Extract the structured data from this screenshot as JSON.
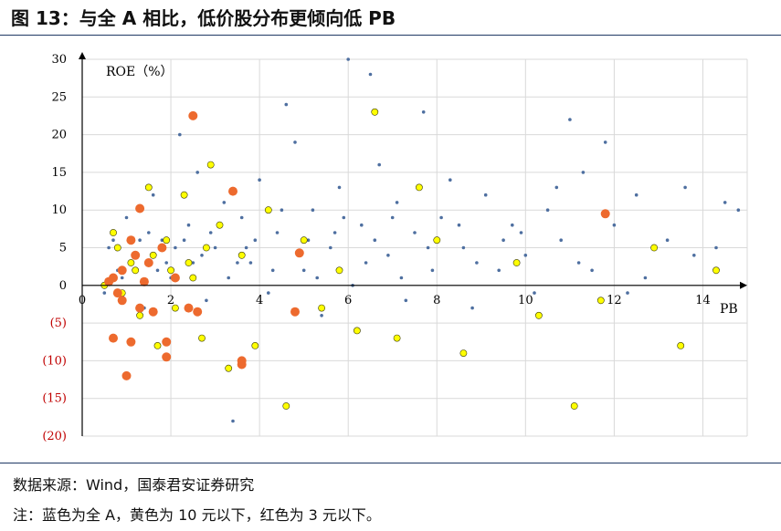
{
  "title": "图 13：与全 A 相比，低价股分布更倾向低 PB",
  "source": "数据来源：Wind，国泰君安证券研究",
  "legend_note": "注：蓝色为全 A，黄色为 10 元以下，红色为 3 元以下。",
  "colors": {
    "blue": "#4e6fa0",
    "yellow": "#ffff00",
    "red": "#ed6a2e",
    "grid": "#d9d9d9",
    "neg_tick": "#c00000"
  },
  "chart_data": {
    "type": "scatter",
    "xlabel": "PB",
    "ylabel": "ROE（%）",
    "xlim": [
      0,
      15
    ],
    "ylim": [
      -20,
      30
    ],
    "x_ticks": [
      {
        "v": 0,
        "label": "0"
      },
      {
        "v": 2,
        "label": "2"
      },
      {
        "v": 4,
        "label": "4"
      },
      {
        "v": 6,
        "label": "6"
      },
      {
        "v": 8,
        "label": "8"
      },
      {
        "v": 10,
        "label": "10"
      },
      {
        "v": 12,
        "label": "12"
      },
      {
        "v": 14,
        "label": "14"
      }
    ],
    "y_ticks": [
      {
        "v": 30,
        "label": "30"
      },
      {
        "v": 25,
        "label": "25"
      },
      {
        "v": 20,
        "label": "20"
      },
      {
        "v": 15,
        "label": "15"
      },
      {
        "v": 10,
        "label": "10"
      },
      {
        "v": 5,
        "label": "5"
      },
      {
        "v": 0,
        "label": "0"
      },
      {
        "v": -5,
        "label": "(5)"
      },
      {
        "v": -10,
        "label": "(10)"
      },
      {
        "v": -15,
        "label": "(15)"
      },
      {
        "v": -20,
        "label": "(20)"
      }
    ],
    "series": [
      {
        "key": "blue",
        "points": [
          [
            14.8,
            10
          ],
          [
            14.5,
            11
          ],
          [
            14.3,
            5
          ],
          [
            13.8,
            4
          ],
          [
            13.6,
            13
          ],
          [
            13.2,
            6
          ],
          [
            12.7,
            1
          ],
          [
            12.5,
            12
          ],
          [
            12.3,
            -1
          ],
          [
            12.0,
            8
          ],
          [
            11.8,
            19
          ],
          [
            11.5,
            2
          ],
          [
            11.3,
            15
          ],
          [
            11.0,
            22
          ],
          [
            10.8,
            6
          ],
          [
            10.5,
            10
          ],
          [
            10.2,
            -1
          ],
          [
            10.0,
            4
          ],
          [
            9.7,
            8
          ],
          [
            9.4,
            2
          ],
          [
            9.1,
            12
          ],
          [
            8.8,
            -3
          ],
          [
            8.6,
            5
          ],
          [
            8.3,
            14
          ],
          [
            8.1,
            9
          ],
          [
            7.9,
            2
          ],
          [
            7.7,
            23
          ],
          [
            7.5,
            7
          ],
          [
            7.3,
            -2
          ],
          [
            7.1,
            11
          ],
          [
            6.9,
            4
          ],
          [
            6.7,
            16
          ],
          [
            6.5,
            28
          ],
          [
            6.3,
            8
          ],
          [
            6.1,
            0
          ],
          [
            6.0,
            30
          ],
          [
            5.8,
            13
          ],
          [
            5.6,
            5
          ],
          [
            5.4,
            -4
          ],
          [
            5.2,
            10
          ],
          [
            5.0,
            2
          ],
          [
            4.8,
            19
          ],
          [
            4.6,
            24
          ],
          [
            4.4,
            7
          ],
          [
            4.2,
            -1
          ],
          [
            4.0,
            14
          ],
          [
            3.8,
            3
          ],
          [
            3.6,
            9
          ],
          [
            3.4,
            -18
          ],
          [
            3.2,
            11
          ],
          [
            3.0,
            5
          ],
          [
            2.8,
            -2
          ],
          [
            2.6,
            15
          ],
          [
            2.4,
            8
          ],
          [
            2.2,
            20
          ],
          [
            2.0,
            1
          ],
          [
            1.8,
            6
          ],
          [
            1.6,
            12
          ],
          [
            1.4,
            -3
          ],
          [
            1.2,
            4
          ],
          [
            1.0,
            9
          ],
          [
            0.8,
            2
          ],
          [
            0.6,
            5
          ],
          [
            0.5,
            -1
          ],
          [
            9.5,
            6
          ],
          [
            8.9,
            3
          ],
          [
            7.2,
            1
          ],
          [
            6.6,
            6
          ],
          [
            5.9,
            9
          ],
          [
            5.3,
            1
          ],
          [
            4.9,
            4
          ],
          [
            4.3,
            2
          ],
          [
            3.7,
            5
          ],
          [
            3.3,
            1
          ],
          [
            2.9,
            7
          ],
          [
            2.5,
            3
          ],
          [
            2.1,
            5
          ],
          [
            1.7,
            2
          ],
          [
            1.3,
            6
          ],
          [
            0.9,
            1
          ],
          [
            11.2,
            3
          ],
          [
            10.7,
            13
          ],
          [
            9.9,
            7
          ],
          [
            8.5,
            8
          ],
          [
            7.8,
            5
          ],
          [
            7.0,
            9
          ],
          [
            6.4,
            3
          ],
          [
            5.7,
            7
          ],
          [
            5.1,
            6
          ],
          [
            4.5,
            10
          ],
          [
            3.9,
            6
          ],
          [
            3.5,
            3
          ],
          [
            3.1,
            8
          ],
          [
            2.7,
            4
          ],
          [
            2.3,
            6
          ],
          [
            1.9,
            3
          ],
          [
            1.5,
            7
          ],
          [
            1.1,
            3
          ],
          [
            0.7,
            6
          ]
        ]
      },
      {
        "key": "yellow",
        "points": [
          [
            14.3,
            2
          ],
          [
            13.5,
            -8
          ],
          [
            12.9,
            5
          ],
          [
            11.7,
            -2
          ],
          [
            11.1,
            -16
          ],
          [
            10.3,
            -4
          ],
          [
            9.8,
            3
          ],
          [
            8.6,
            -9
          ],
          [
            8.0,
            6
          ],
          [
            7.6,
            13
          ],
          [
            7.1,
            -7
          ],
          [
            6.6,
            23
          ],
          [
            6.2,
            -6
          ],
          [
            5.8,
            2
          ],
          [
            5.4,
            -3
          ],
          [
            5.0,
            6
          ],
          [
            4.6,
            -16
          ],
          [
            4.2,
            10
          ],
          [
            3.9,
            -8
          ],
          [
            3.6,
            4
          ],
          [
            3.3,
            -11
          ],
          [
            3.1,
            8
          ],
          [
            2.9,
            16
          ],
          [
            2.7,
            -7
          ],
          [
            2.5,
            1
          ],
          [
            2.3,
            12
          ],
          [
            2.1,
            -3
          ],
          [
            1.9,
            6
          ],
          [
            1.7,
            -8
          ],
          [
            1.5,
            13
          ],
          [
            1.3,
            -4
          ],
          [
            1.1,
            3
          ],
          [
            0.9,
            -1
          ],
          [
            0.7,
            7
          ],
          [
            0.5,
            0
          ],
          [
            2.8,
            5
          ],
          [
            2.4,
            3
          ],
          [
            2.0,
            2
          ],
          [
            1.6,
            4
          ],
          [
            1.2,
            2
          ],
          [
            0.8,
            5
          ]
        ]
      },
      {
        "key": "red",
        "points": [
          [
            11.8,
            9.5
          ],
          [
            4.9,
            4.3
          ],
          [
            4.8,
            -3.5
          ],
          [
            3.4,
            12.5
          ],
          [
            2.5,
            22.5
          ],
          [
            3.6,
            -10.5
          ],
          [
            3.6,
            -10
          ],
          [
            1.9,
            -9.5
          ],
          [
            1.3,
            10.2
          ],
          [
            1.1,
            -7.5
          ],
          [
            0.7,
            -7
          ],
          [
            1.0,
            -12
          ],
          [
            1.9,
            -7.5
          ],
          [
            0.7,
            1
          ],
          [
            0.9,
            2
          ],
          [
            1.2,
            4
          ],
          [
            1.5,
            3
          ],
          [
            1.8,
            5
          ],
          [
            0.8,
            -1
          ],
          [
            1.3,
            -3
          ],
          [
            1.6,
            -3.5
          ],
          [
            2.4,
            -3
          ],
          [
            2.6,
            -3.5
          ],
          [
            1.1,
            6
          ],
          [
            0.6,
            0.5
          ],
          [
            0.9,
            -2
          ],
          [
            2.1,
            1
          ],
          [
            1.4,
            0.5
          ]
        ]
      }
    ]
  }
}
